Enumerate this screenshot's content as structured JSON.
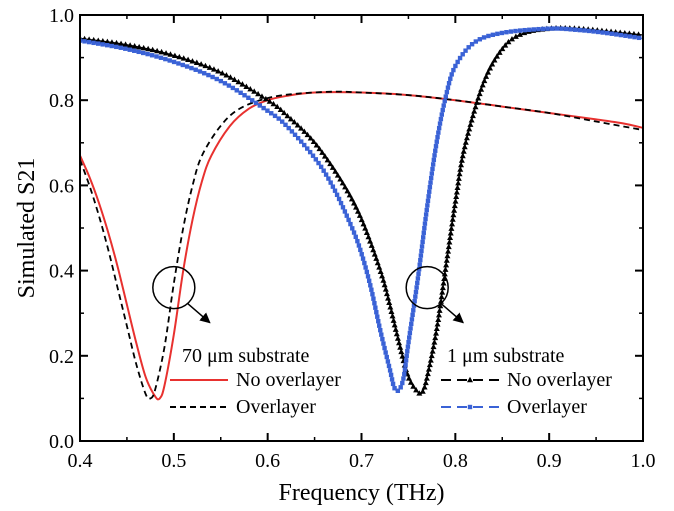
{
  "chart_data": {
    "type": "line",
    "title": "",
    "xlabel": "Frequency (THz)",
    "ylabel": "Simulated S21",
    "xlim": [
      0.4,
      1.0
    ],
    "ylim": [
      0.0,
      1.0
    ],
    "xticks": [
      "0.4",
      "0.5",
      "0.6",
      "0.7",
      "0.8",
      "0.9",
      "1.0"
    ],
    "yticks": [
      "0.0",
      "0.2",
      "0.4",
      "0.6",
      "0.8",
      "1.0"
    ],
    "groups": [
      {
        "label": "70 μm substrate",
        "focus_point": [
          0.5,
          0.36
        ]
      },
      {
        "label": "1 μm substrate",
        "focus_point": [
          0.77,
          0.36
        ]
      }
    ],
    "series": [
      {
        "name": "No overlayer",
        "group": "70 μm substrate",
        "color": "#e8312f",
        "style": "solid",
        "points": [
          [
            0.4,
            0.67
          ],
          [
            0.41,
            0.62
          ],
          [
            0.42,
            0.56
          ],
          [
            0.43,
            0.49
          ],
          [
            0.44,
            0.41
          ],
          [
            0.45,
            0.32
          ],
          [
            0.46,
            0.23
          ],
          [
            0.47,
            0.15
          ],
          [
            0.48,
            0.105
          ],
          [
            0.485,
            0.1
          ],
          [
            0.49,
            0.13
          ],
          [
            0.5,
            0.25
          ],
          [
            0.51,
            0.4
          ],
          [
            0.52,
            0.52
          ],
          [
            0.53,
            0.61
          ],
          [
            0.54,
            0.67
          ],
          [
            0.56,
            0.74
          ],
          [
            0.58,
            0.78
          ],
          [
            0.6,
            0.8
          ],
          [
            0.62,
            0.81
          ],
          [
            0.65,
            0.818
          ],
          [
            0.7,
            0.818
          ],
          [
            0.75,
            0.812
          ],
          [
            0.8,
            0.8
          ],
          [
            0.85,
            0.785
          ],
          [
            0.9,
            0.77
          ],
          [
            0.95,
            0.755
          ],
          [
            0.98,
            0.745
          ],
          [
            1.0,
            0.735
          ]
        ]
      },
      {
        "name": "Overlayer",
        "group": "70 μm substrate",
        "color": "#000000",
        "style": "dashed",
        "points": [
          [
            0.4,
            0.66
          ],
          [
            0.41,
            0.6
          ],
          [
            0.42,
            0.53
          ],
          [
            0.43,
            0.45
          ],
          [
            0.44,
            0.36
          ],
          [
            0.45,
            0.27
          ],
          [
            0.46,
            0.18
          ],
          [
            0.47,
            0.11
          ],
          [
            0.475,
            0.1
          ],
          [
            0.48,
            0.12
          ],
          [
            0.49,
            0.22
          ],
          [
            0.5,
            0.37
          ],
          [
            0.51,
            0.5
          ],
          [
            0.52,
            0.6
          ],
          [
            0.53,
            0.67
          ],
          [
            0.55,
            0.74
          ],
          [
            0.57,
            0.78
          ],
          [
            0.6,
            0.805
          ],
          [
            0.63,
            0.815
          ],
          [
            0.67,
            0.82
          ],
          [
            0.7,
            0.818
          ],
          [
            0.75,
            0.812
          ],
          [
            0.8,
            0.8
          ],
          [
            0.85,
            0.785
          ],
          [
            0.9,
            0.77
          ],
          [
            0.95,
            0.75
          ],
          [
            1.0,
            0.73
          ]
        ]
      },
      {
        "name": "No overlayer",
        "group": "1 μm substrate",
        "color": "#000000",
        "style": "line-triangle",
        "points": [
          [
            0.4,
            0.945
          ],
          [
            0.45,
            0.93
          ],
          [
            0.5,
            0.905
          ],
          [
            0.55,
            0.865
          ],
          [
            0.6,
            0.8
          ],
          [
            0.62,
            0.765
          ],
          [
            0.65,
            0.7
          ],
          [
            0.68,
            0.605
          ],
          [
            0.7,
            0.52
          ],
          [
            0.72,
            0.4
          ],
          [
            0.73,
            0.32
          ],
          [
            0.74,
            0.23
          ],
          [
            0.75,
            0.15
          ],
          [
            0.76,
            0.115
          ],
          [
            0.765,
            0.115
          ],
          [
            0.77,
            0.15
          ],
          [
            0.78,
            0.26
          ],
          [
            0.79,
            0.41
          ],
          [
            0.8,
            0.56
          ],
          [
            0.81,
            0.69
          ],
          [
            0.83,
            0.84
          ],
          [
            0.85,
            0.92
          ],
          [
            0.87,
            0.955
          ],
          [
            0.9,
            0.968
          ],
          [
            0.93,
            0.968
          ],
          [
            0.96,
            0.962
          ],
          [
            1.0,
            0.953
          ]
        ]
      },
      {
        "name": "Overlayer",
        "group": "1 μm substrate",
        "color": "#3a62d6",
        "style": "line-square",
        "points": [
          [
            0.4,
            0.94
          ],
          [
            0.45,
            0.92
          ],
          [
            0.5,
            0.89
          ],
          [
            0.55,
            0.845
          ],
          [
            0.6,
            0.775
          ],
          [
            0.62,
            0.74
          ],
          [
            0.65,
            0.665
          ],
          [
            0.67,
            0.595
          ],
          [
            0.69,
            0.5
          ],
          [
            0.7,
            0.44
          ],
          [
            0.71,
            0.36
          ],
          [
            0.72,
            0.26
          ],
          [
            0.73,
            0.17
          ],
          [
            0.735,
            0.125
          ],
          [
            0.74,
            0.12
          ],
          [
            0.745,
            0.15
          ],
          [
            0.75,
            0.23
          ],
          [
            0.76,
            0.38
          ],
          [
            0.77,
            0.55
          ],
          [
            0.78,
            0.7
          ],
          [
            0.79,
            0.81
          ],
          [
            0.8,
            0.88
          ],
          [
            0.82,
            0.935
          ],
          [
            0.85,
            0.958
          ],
          [
            0.9,
            0.968
          ],
          [
            0.93,
            0.965
          ],
          [
            0.96,
            0.958
          ],
          [
            1.0,
            0.945
          ]
        ]
      }
    ]
  }
}
